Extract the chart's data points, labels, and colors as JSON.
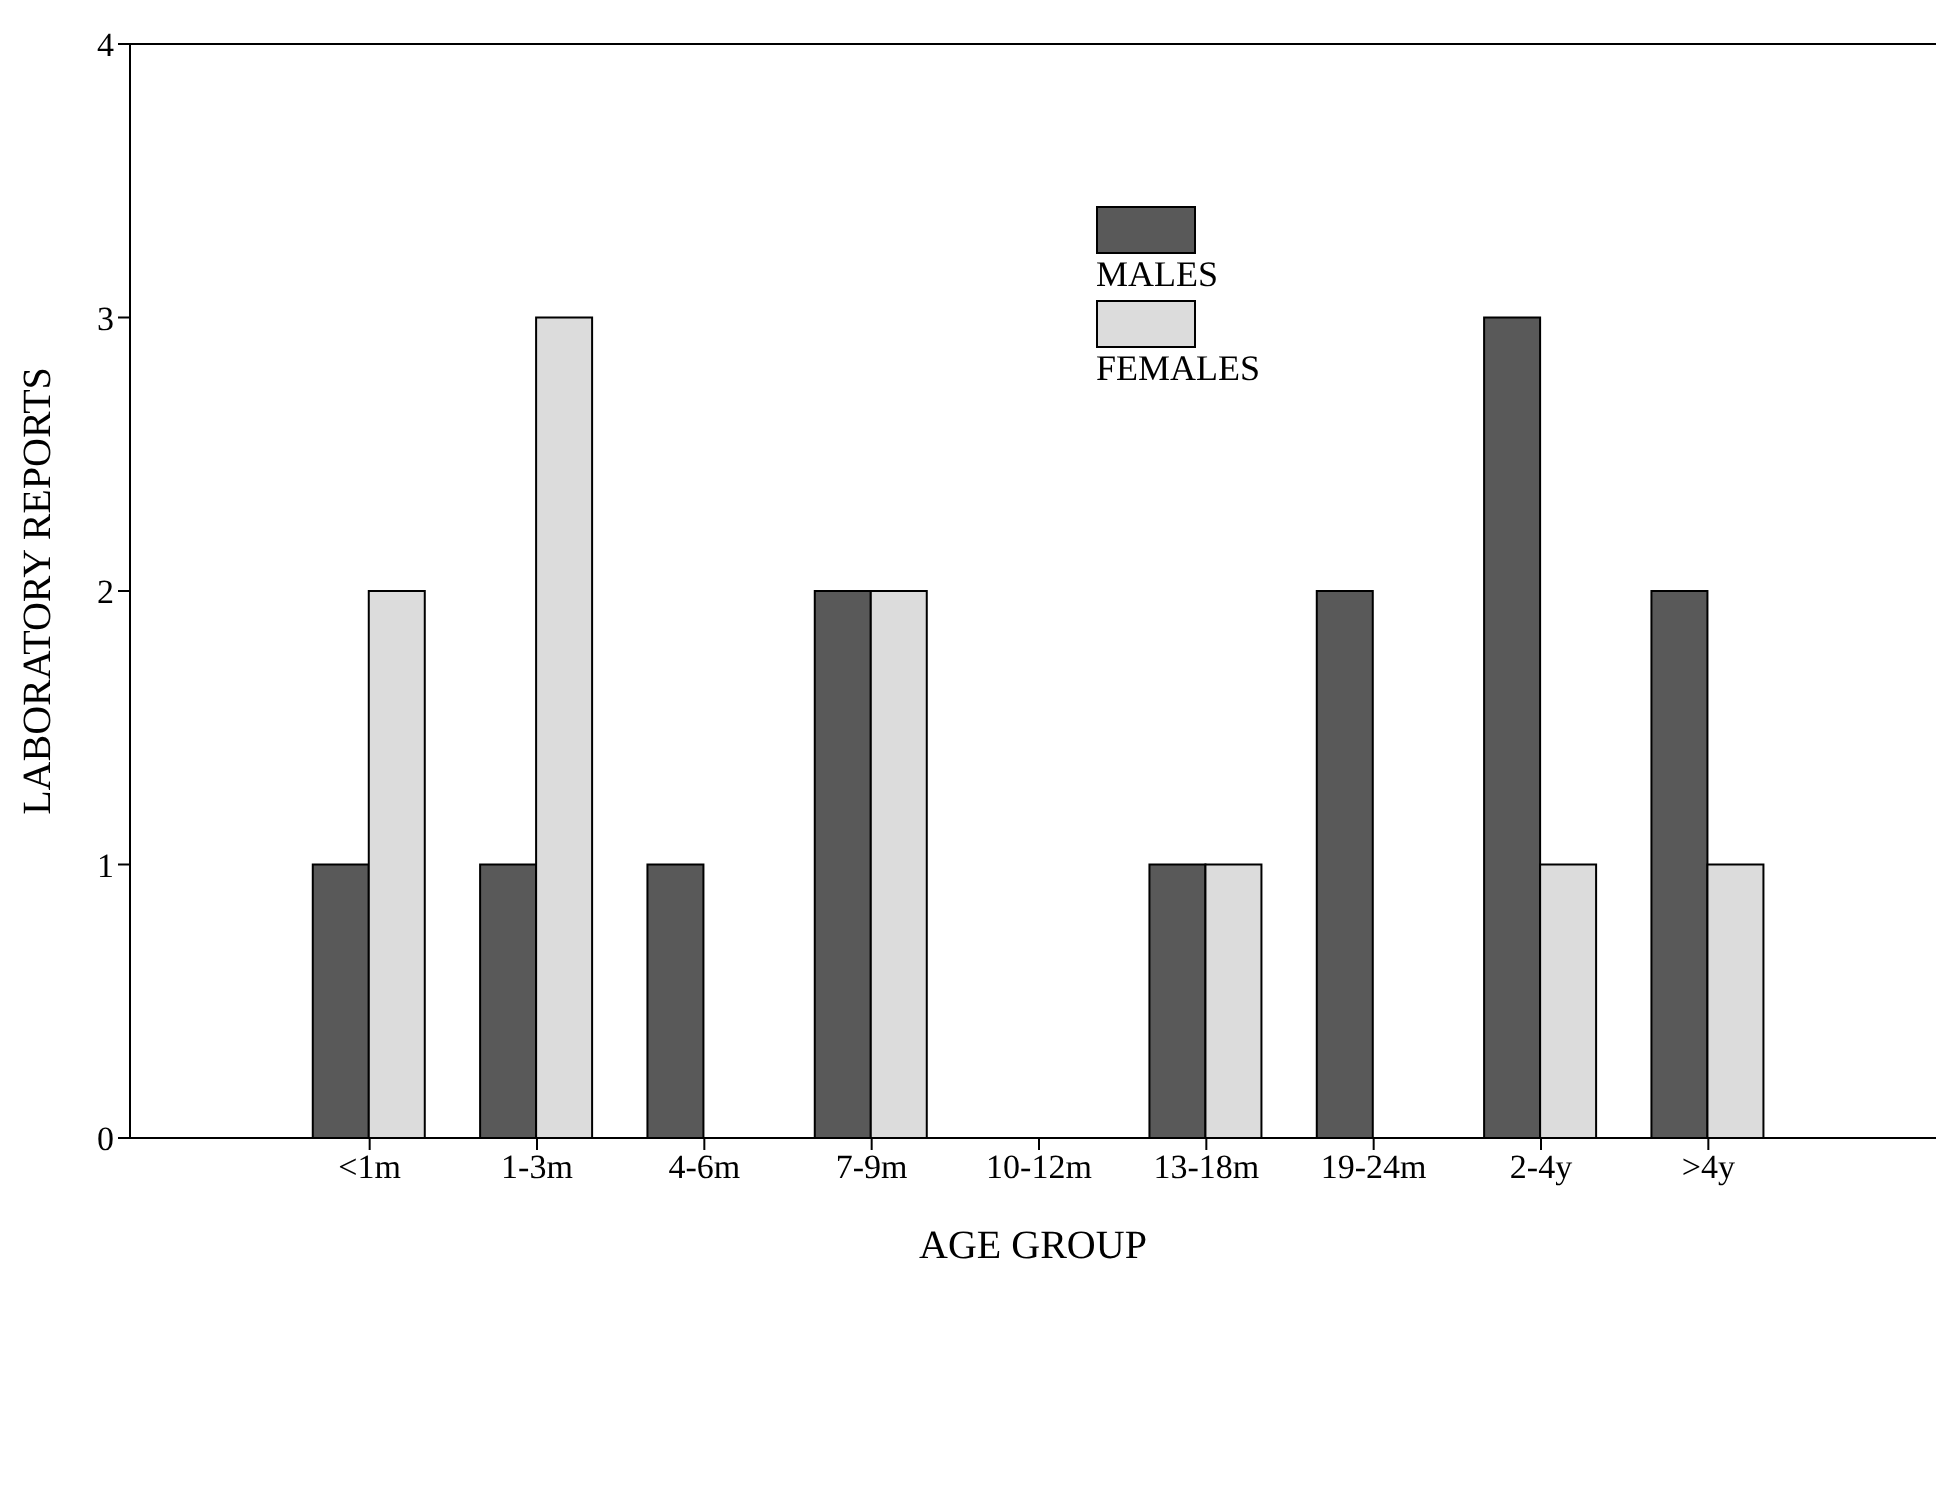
{
  "chart_data": {
    "type": "bar",
    "xlabel": "AGE GROUP",
    "ylabel": "LABORATORY REPORTS",
    "categories": [
      "<1m",
      "1-3m",
      "4-6m",
      "7-9m",
      "10-12m",
      "13-18m",
      "19-24m",
      "2-4y",
      ">4y"
    ],
    "series": [
      {
        "name": "MALES",
        "color": "#595959",
        "values": [
          1,
          1,
          1,
          2,
          0,
          1,
          2,
          3,
          2
        ]
      },
      {
        "name": "FEMALES",
        "color": "#dcdcdc",
        "values": [
          2,
          3,
          0,
          2,
          0,
          1,
          0,
          1,
          1
        ]
      }
    ],
    "ylim": [
      0,
      4
    ],
    "yticks": [
      0,
      1,
      2,
      3,
      4
    ],
    "grid": false,
    "legend": "top"
  }
}
